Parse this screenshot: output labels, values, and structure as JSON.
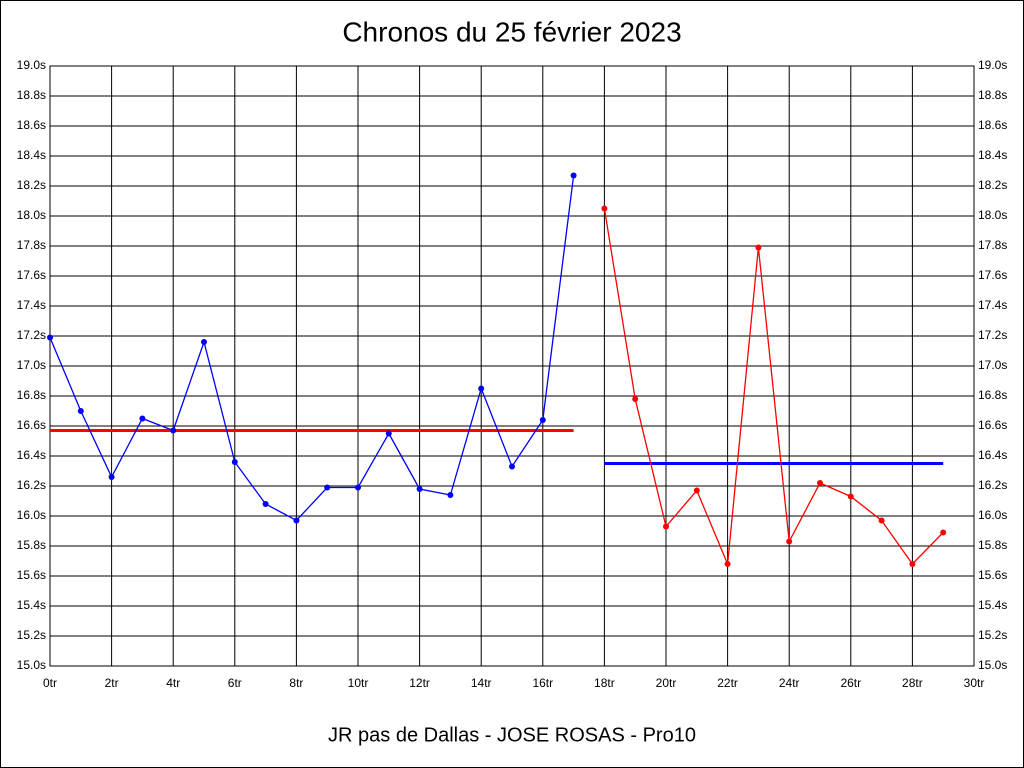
{
  "chart_data": {
    "type": "line",
    "title": "Chronos du 25 février 2023",
    "x_label": "JR pas de Dallas - JOSE ROSAS - Pro10",
    "grid": true,
    "xlim": [
      0,
      30
    ],
    "ylim": [
      15.0,
      19.0
    ],
    "xticks": [
      {
        "value": 0,
        "label": "0tr"
      },
      {
        "value": 2,
        "label": "2tr"
      },
      {
        "value": 4,
        "label": "4tr"
      },
      {
        "value": 6,
        "label": "6tr"
      },
      {
        "value": 8,
        "label": "8tr"
      },
      {
        "value": 10,
        "label": "10tr"
      },
      {
        "value": 12,
        "label": "12tr"
      },
      {
        "value": 14,
        "label": "14tr"
      },
      {
        "value": 16,
        "label": "16tr"
      },
      {
        "value": 18,
        "label": "18tr"
      },
      {
        "value": 20,
        "label": "20tr"
      },
      {
        "value": 22,
        "label": "22tr"
      },
      {
        "value": 24,
        "label": "24tr"
      },
      {
        "value": 26,
        "label": "26tr"
      },
      {
        "value": 28,
        "label": "28tr"
      },
      {
        "value": 30,
        "label": "30tr"
      }
    ],
    "yticks": [
      {
        "value": 15.0,
        "label": "15.0s"
      },
      {
        "value": 15.2,
        "label": "15.2s"
      },
      {
        "value": 15.4,
        "label": "15.4s"
      },
      {
        "value": 15.6,
        "label": "15.6s"
      },
      {
        "value": 15.8,
        "label": "15.8s"
      },
      {
        "value": 16.0,
        "label": "16.0s"
      },
      {
        "value": 16.2,
        "label": "16.2s"
      },
      {
        "value": 16.4,
        "label": "16.4s"
      },
      {
        "value": 16.6,
        "label": "16.6s"
      },
      {
        "value": 16.8,
        "label": "16.8s"
      },
      {
        "value": 17.0,
        "label": "17.0s"
      },
      {
        "value": 17.2,
        "label": "17.2s"
      },
      {
        "value": 17.4,
        "label": "17.4s"
      },
      {
        "value": 17.6,
        "label": "17.6s"
      },
      {
        "value": 17.8,
        "label": "17.8s"
      },
      {
        "value": 18.0,
        "label": "18.0s"
      },
      {
        "value": 18.2,
        "label": "18.2s"
      },
      {
        "value": 18.4,
        "label": "18.4s"
      },
      {
        "value": 18.6,
        "label": "18.6s"
      },
      {
        "value": 18.8,
        "label": "18.8s"
      },
      {
        "value": 19.0,
        "label": "19.0s"
      }
    ],
    "series": [
      {
        "color": "#0000ff",
        "x": [
          0,
          1,
          2,
          3,
          4,
          5,
          6,
          7,
          8,
          9,
          10,
          11,
          12,
          13,
          14,
          15,
          16,
          17
        ],
        "values": [
          17.19,
          16.7,
          16.26,
          16.65,
          16.57,
          17.16,
          16.36,
          16.08,
          15.97,
          16.19,
          16.19,
          16.55,
          16.18,
          16.14,
          16.85,
          16.33,
          16.64,
          18.27
        ]
      },
      {
        "color": "#ff0000",
        "x": [
          18,
          19,
          20,
          21,
          22,
          23,
          24,
          25,
          26,
          27,
          28,
          29
        ],
        "values": [
          18.05,
          16.78,
          15.93,
          16.17,
          15.68,
          17.79,
          15.83,
          16.22,
          16.13,
          15.97,
          15.68,
          15.89
        ]
      }
    ],
    "reference_lines": [
      {
        "value": 16.57,
        "x": [
          0,
          17
        ],
        "color": "#ff0000"
      },
      {
        "value": 16.35,
        "x": [
          18,
          29
        ],
        "color": "#0000ff"
      }
    ]
  }
}
